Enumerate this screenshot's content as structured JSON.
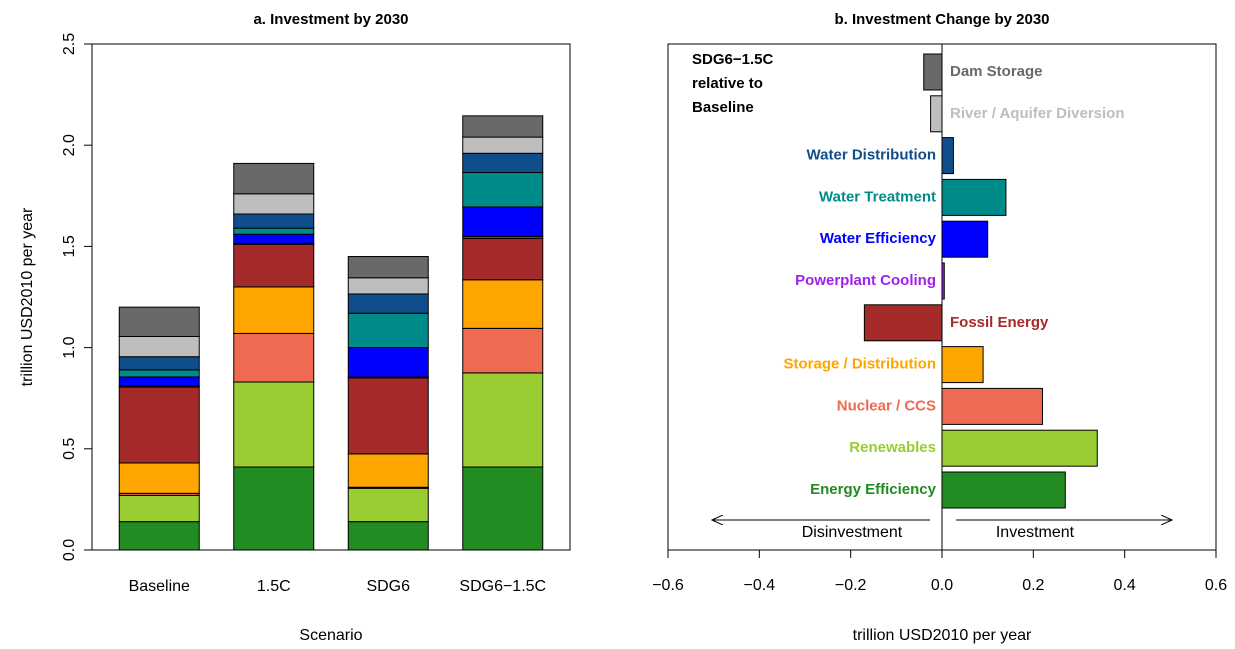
{
  "chart_data": [
    {
      "type": "bar",
      "stacked": true,
      "title": "a. Investment by 2030",
      "xlabel": "Scenario",
      "ylabel": "trillion USD2010 per year",
      "categories": [
        "Baseline",
        "1.5C",
        "SDG6",
        "SDG6−1.5C"
      ],
      "series": [
        {
          "color": "#228B22",
          "values": [
            0.14,
            0.41,
            0.14,
            0.41
          ]
        },
        {
          "color": "#9ACD32",
          "values": [
            0.13,
            0.42,
            0.165,
            0.465
          ]
        },
        {
          "color": "#EE6A50",
          "values": [
            0.01,
            0.24,
            0.005,
            0.22
          ]
        },
        {
          "color": "#FFA500",
          "values": [
            0.15,
            0.23,
            0.165,
            0.24
          ]
        },
        {
          "color": "#A52A2A",
          "values": [
            0.375,
            0.21,
            0.375,
            0.205
          ]
        },
        {
          "color": "#A020F0",
          "values": [
            0.005,
            0.005,
            0.005,
            0.01
          ]
        },
        {
          "color": "#0000FF",
          "values": [
            0.045,
            0.045,
            0.145,
            0.145
          ]
        },
        {
          "color": "#008B8B",
          "values": [
            0.035,
            0.03,
            0.17,
            0.17
          ]
        },
        {
          "color": "#104E8B",
          "values": [
            0.065,
            0.07,
            0.095,
            0.095
          ]
        },
        {
          "color": "#BEBEBE",
          "values": [
            0.1,
            0.1,
            0.08,
            0.08
          ]
        },
        {
          "color": "#696969",
          "values": [
            0.145,
            0.15,
            0.105,
            0.105
          ]
        }
      ],
      "ylim": [
        0,
        2.5
      ],
      "yticks": [
        {
          "value": 0,
          "label": "0.0"
        },
        0.5,
        {
          "value": 1,
          "label": "1.0"
        },
        1.5,
        {
          "value": 2,
          "label": "2.0"
        },
        2.5
      ]
    },
    {
      "type": "barh",
      "title": "b. Investment Change by 2030",
      "xlabel": "trillion USD2010 per year",
      "annotation": [
        "SDG6−1.5C",
        "relative to",
        "Baseline"
      ],
      "arrow_labels": [
        "Disinvestment",
        "Investment"
      ],
      "categories": [
        "Dam Storage",
        "River / Aquifer Diversion",
        "Water Distribution",
        "Water Treatment",
        "Water Efficiency",
        "Powerplant Cooling",
        "Fossil Energy",
        "Storage / Distribution",
        "Nuclear / CCS",
        "Renewables",
        "Energy Efficiency"
      ],
      "values": [
        -0.04,
        -0.025,
        0.025,
        0.14,
        0.1,
        0.005,
        -0.17,
        0.09,
        0.22,
        0.34,
        0.27
      ],
      "colors": [
        "#696969",
        "#BEBEBE",
        "#104E8B",
        "#008B8B",
        "#0000FF",
        "#A020F0",
        "#A52A2A",
        "#FFA500",
        "#EE6A50",
        "#9ACD32",
        "#228B22"
      ],
      "xlim": [
        -0.6,
        0.6
      ],
      "xticks": [
        {
          "value": -0.6,
          "label": "−0.6"
        },
        {
          "value": -0.4,
          "label": "−0.4"
        },
        {
          "value": -0.2,
          "label": "−0.2"
        },
        {
          "value": 0,
          "label": "0.0"
        },
        0.2,
        0.4,
        0.6
      ]
    }
  ]
}
